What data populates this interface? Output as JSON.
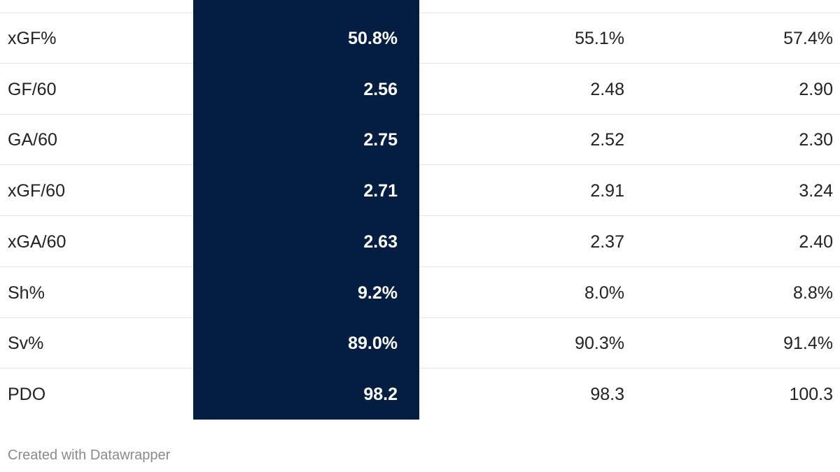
{
  "chart_data": {
    "type": "table",
    "rows": [
      {
        "metric": "xGF%",
        "values": [
          "50.8%",
          "55.1%",
          "57.4%"
        ]
      },
      {
        "metric": "GF/60",
        "values": [
          "2.56",
          "2.48",
          "2.90"
        ]
      },
      {
        "metric": "GA/60",
        "values": [
          "2.75",
          "2.52",
          "2.30"
        ]
      },
      {
        "metric": "xGF/60",
        "values": [
          "2.71",
          "2.91",
          "3.24"
        ]
      },
      {
        "metric": "xGA/60",
        "values": [
          "2.63",
          "2.37",
          "2.40"
        ]
      },
      {
        "metric": "Sh%",
        "values": [
          "9.2%",
          "8.0%",
          "8.8%"
        ]
      },
      {
        "metric": "Sv%",
        "values": [
          "89.0%",
          "90.3%",
          "91.4%"
        ]
      },
      {
        "metric": "PDO",
        "values": [
          "98.2",
          "98.3",
          "100.3"
        ]
      }
    ],
    "highlight_column_color": "#041e42"
  },
  "footer": {
    "credit": "Created with Datawrapper"
  }
}
